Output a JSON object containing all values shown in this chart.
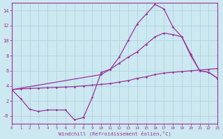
{
  "xlabel": "Windchill (Refroidissement éolien,°C)",
  "background_color": "#cce8f0",
  "grid_color": "#aad0dc",
  "line_color": "#993399",
  "xlim": [
    0,
    23
  ],
  "ylim": [
    -1.0,
    15.0
  ],
  "yticks": [
    0,
    2,
    4,
    6,
    8,
    10,
    12,
    14
  ],
  "ytick_labels": [
    "-0",
    "2",
    "4",
    "6",
    "8",
    "10",
    "12",
    "14"
  ],
  "series1_x": [
    0,
    1,
    2,
    3,
    4,
    5,
    6,
    7,
    8,
    9,
    10,
    11,
    12,
    13,
    14,
    15,
    16,
    17,
    18,
    19,
    20,
    21,
    22,
    23
  ],
  "series1_y": [
    3.5,
    2.3,
    0.9,
    0.6,
    0.8,
    0.8,
    0.8,
    -0.5,
    -0.2,
    2.5,
    5.8,
    6.2,
    7.8,
    10.0,
    12.2,
    13.5,
    14.8,
    14.2,
    11.8,
    10.5,
    8.2,
    6.0,
    5.8,
    5.0
  ],
  "series2_x": [
    0,
    1,
    2,
    3,
    4,
    5,
    6,
    7,
    8,
    9,
    10,
    11,
    12,
    13,
    14,
    15,
    16,
    17,
    18,
    19,
    20,
    21,
    22,
    23
  ],
  "series2_y": [
    3.5,
    3.6,
    3.65,
    3.7,
    3.75,
    3.8,
    3.85,
    3.9,
    4.0,
    4.1,
    4.2,
    4.3,
    4.5,
    4.7,
    5.0,
    5.2,
    5.5,
    5.7,
    5.8,
    5.9,
    6.0,
    6.1,
    6.2,
    6.3
  ],
  "series3_x": [
    0,
    10,
    11,
    12,
    13,
    14,
    15,
    16,
    17,
    18,
    19,
    20,
    21,
    22,
    23
  ],
  "series3_y": [
    3.5,
    5.5,
    6.2,
    7.0,
    7.8,
    8.5,
    9.5,
    10.5,
    11.0,
    10.8,
    10.5,
    8.0,
    6.0,
    5.8,
    5.0
  ]
}
